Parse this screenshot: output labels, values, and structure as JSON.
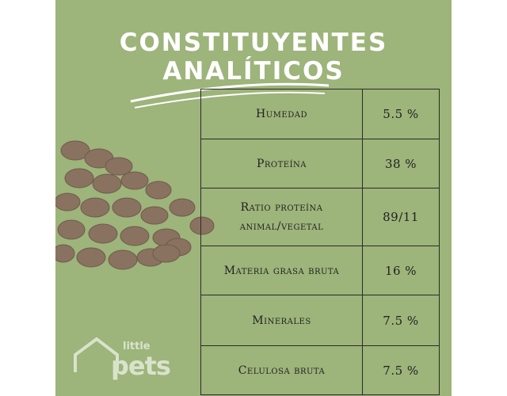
{
  "header": {
    "title_lines": [
      "CONSTITUYENTES",
      "ANALÍTICOS"
    ]
  },
  "table": {
    "rows": [
      [
        "Humedad",
        "5.5 %"
      ],
      [
        "Proteína",
        "38 %"
      ],
      [
        "Ratio proteína animal/vegetal",
        "89/11"
      ],
      [
        "Materia grasa bruta",
        "16 %"
      ],
      [
        "Minerales",
        "7.5 %"
      ],
      [
        "Celulosa bruta",
        "7.5 %"
      ]
    ]
  },
  "logo": {
    "small": "little",
    "large": "pets"
  }
}
